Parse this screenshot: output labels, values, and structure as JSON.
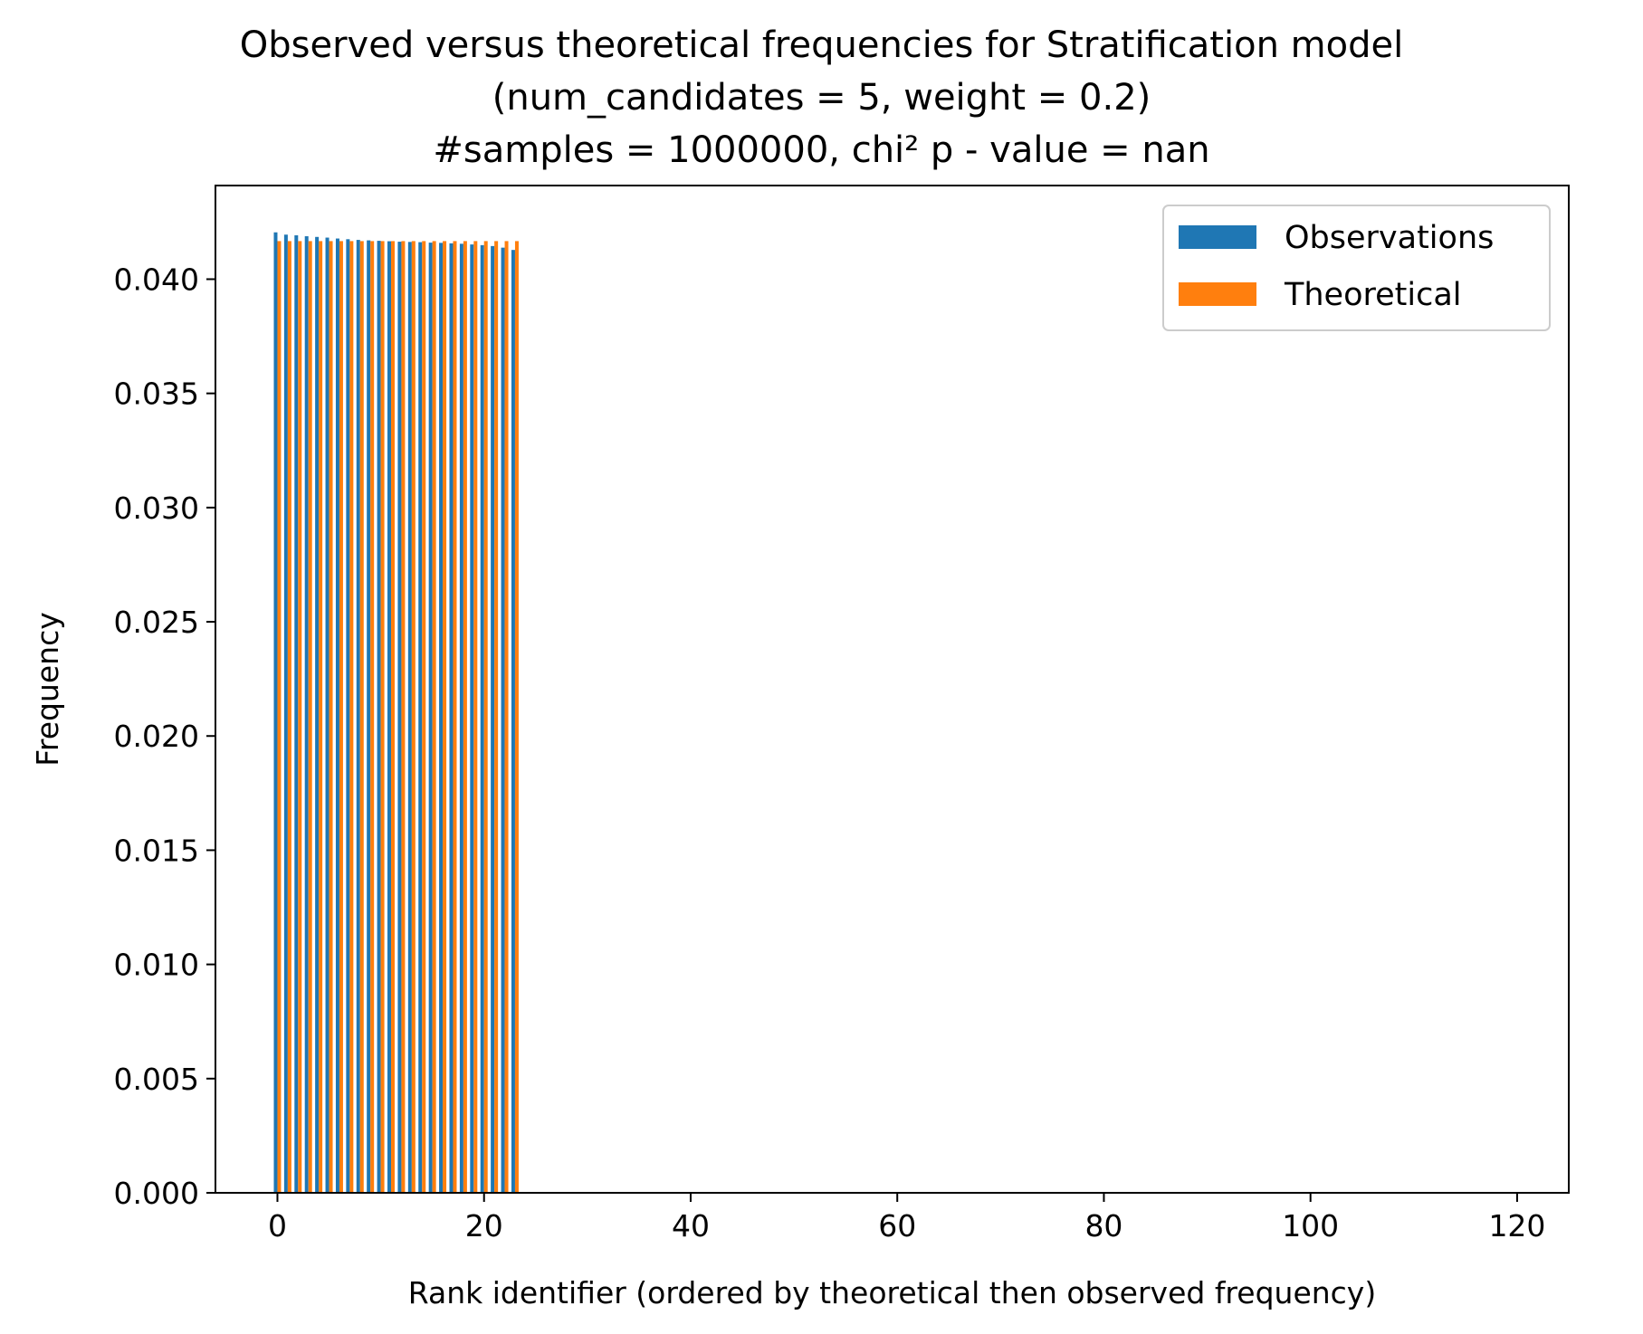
{
  "chart_data": {
    "type": "bar",
    "title": [
      "Observed versus theoretical frequencies for Stratification model",
      "(num_candidates = 5, weight = 0.2)",
      "#samples = 1000000, chi² p - value = nan"
    ],
    "xlabel": "Rank identifier (ordered by theoretical then observed frequency)",
    "ylabel": "Frequency",
    "xlim": [
      -6,
      125
    ],
    "ylim": [
      0,
      0.0441
    ],
    "xticks": [
      0,
      20,
      40,
      60,
      80,
      100,
      120
    ],
    "xtick_labels": [
      "0",
      "20",
      "40",
      "60",
      "80",
      "100",
      "120"
    ],
    "yticks": [
      0,
      0.005,
      0.01,
      0.015,
      0.02,
      0.025,
      0.03,
      0.035,
      0.04
    ],
    "ytick_labels": [
      "0.000",
      "0.005",
      "0.010",
      "0.015",
      "0.020",
      "0.025",
      "0.030",
      "0.035",
      "0.040"
    ],
    "grid": false,
    "legend": "top-right",
    "x": [
      0,
      1,
      2,
      3,
      4,
      5,
      6,
      7,
      8,
      9,
      10,
      11,
      12,
      13,
      14,
      15,
      16,
      17,
      18,
      19,
      20,
      21,
      22,
      23
    ],
    "series": [
      {
        "name": "Observations",
        "color": "#1f77b4",
        "values": [
          0.04205,
          0.04195,
          0.04192,
          0.04188,
          0.04185,
          0.04182,
          0.04178,
          0.04175,
          0.04172,
          0.0417,
          0.04168,
          0.04166,
          0.04164,
          0.04163,
          0.04162,
          0.0416,
          0.04159,
          0.04157,
          0.04155,
          0.04152,
          0.04149,
          0.04145,
          0.04138,
          0.04128
        ]
      },
      {
        "name": "Theoretical",
        "color": "#ff7f0e",
        "values": [
          0.041667,
          0.041667,
          0.041667,
          0.041667,
          0.041667,
          0.041667,
          0.041667,
          0.041667,
          0.041667,
          0.041667,
          0.041667,
          0.041667,
          0.041667,
          0.041667,
          0.041667,
          0.041667,
          0.041667,
          0.041667,
          0.041667,
          0.041667,
          0.041667,
          0.041667,
          0.041667,
          0.041667
        ]
      }
    ]
  }
}
